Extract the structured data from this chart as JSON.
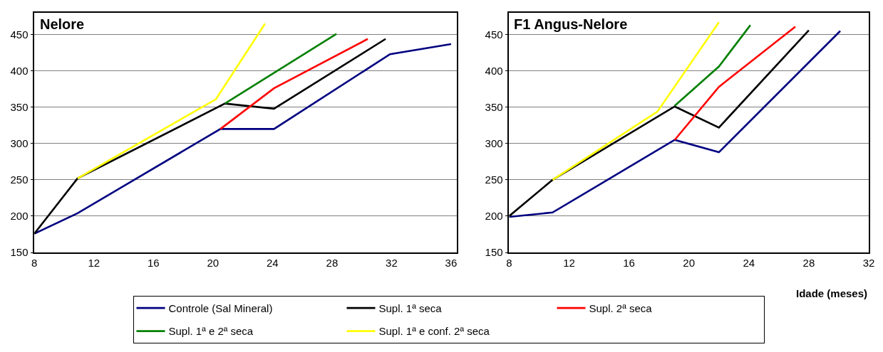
{
  "chart_data": [
    {
      "type": "line",
      "title": "Nelore",
      "xlim": [
        8,
        36.4
      ],
      "xticks": [
        8,
        12,
        16,
        20,
        24,
        28,
        32,
        36
      ],
      "ylim": [
        150,
        480
      ],
      "yticks": [
        150,
        200,
        250,
        300,
        350,
        400,
        450
      ],
      "grid": "y",
      "legend": "bottom",
      "marker": "none",
      "line_style": "solid",
      "series": [
        {
          "name": "Controle (Sal Mineral)",
          "color": "#000080",
          "x": [
            8,
            10.9,
            20.5,
            24.1,
            31.9,
            36.0
          ],
          "values": [
            176,
            204,
            320,
            320,
            423,
            437
          ]
        },
        {
          "name": "Supl. 1ª seca",
          "color": "#000000",
          "x": [
            8,
            10.9,
            20.8,
            24.1,
            31.6
          ],
          "values": [
            176,
            252,
            355,
            348,
            444
          ]
        },
        {
          "name": "Supl. 2ª seca",
          "color": "#ff0000",
          "x": [
            20.5,
            24.1,
            30.4
          ],
          "values": [
            320,
            376,
            444
          ]
        },
        {
          "name": "Supl. 1ª e 2ª seca",
          "color": "#008000",
          "x": [
            20.8,
            28.3
          ],
          "values": [
            355,
            451
          ]
        },
        {
          "name": "Supl. 1ª e conf. 2ª seca",
          "color": "#ffff00",
          "x": [
            10.9,
            20.2,
            23.5
          ],
          "values": [
            252,
            361,
            465
          ]
        }
      ]
    },
    {
      "type": "line",
      "title": "F1 Angus-Nelore",
      "xlabel": "Idade (meses)",
      "xlim": [
        8,
        32
      ],
      "xticks": [
        8,
        12,
        16,
        20,
        24,
        28,
        32
      ],
      "ylim": [
        150,
        480
      ],
      "yticks": [
        150,
        200,
        250,
        300,
        350,
        400,
        450
      ],
      "grid": "y",
      "marker": "none",
      "line_style": "solid",
      "series": [
        {
          "color": "#000080",
          "x": [
            8,
            10.9,
            19.05,
            22.0,
            30.1
          ],
          "values": [
            199,
            205,
            305,
            288,
            455
          ]
        },
        {
          "color": "#000000",
          "x": [
            8,
            10.9,
            19.05,
            22.0,
            28.0
          ],
          "values": [
            200,
            250,
            351,
            322,
            456
          ]
        },
        {
          "color": "#ff0000",
          "x": [
            19.05,
            22.0,
            27.1
          ],
          "values": [
            305,
            378,
            461
          ]
        },
        {
          "color": "#008000",
          "x": [
            19.05,
            22.0,
            24.1
          ],
          "values": [
            352,
            406,
            463
          ]
        },
        {
          "color": "#ffff00",
          "x": [
            10.9,
            17.9,
            22.0
          ],
          "values": [
            250,
            344,
            467
          ]
        }
      ]
    }
  ]
}
